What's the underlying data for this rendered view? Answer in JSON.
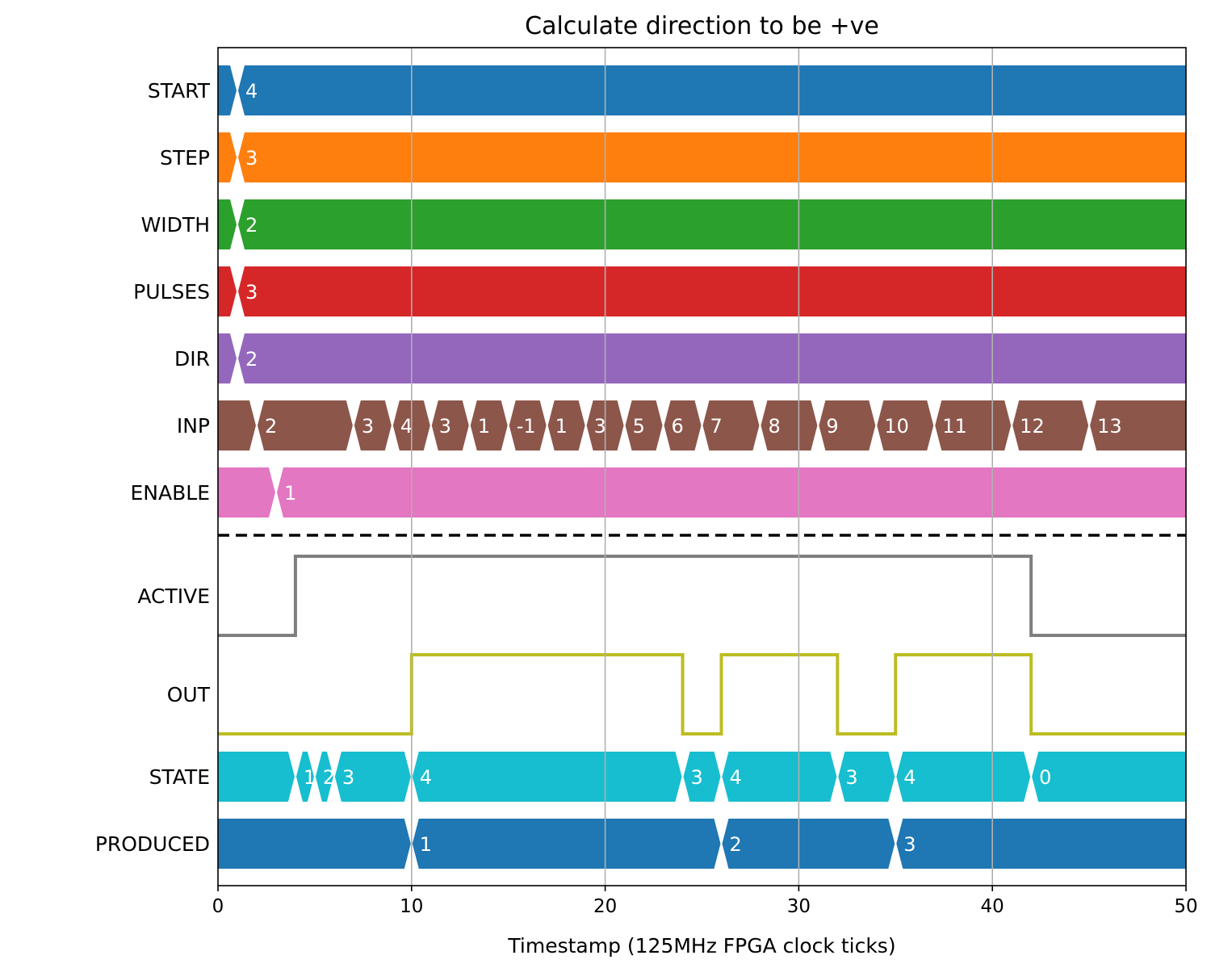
{
  "chart_data": {
    "type": "timing-diagram",
    "title": "Calculate direction to be +ve",
    "xlabel": "Timestamp (125MHz FPGA clock ticks)",
    "xlim": [
      0,
      50
    ],
    "xticks": [
      0,
      10,
      20,
      30,
      40,
      50
    ],
    "grid": "vertical",
    "separator": "dashed line between inputs and outputs",
    "inputs": [
      {
        "name": "START",
        "color": "#1f77b4",
        "transitions": [
          {
            "t": 1,
            "value": "4"
          }
        ]
      },
      {
        "name": "STEP",
        "color": "#ff7f0e",
        "transitions": [
          {
            "t": 1,
            "value": "3"
          }
        ]
      },
      {
        "name": "WIDTH",
        "color": "#2ca02c",
        "transitions": [
          {
            "t": 1,
            "value": "2"
          }
        ]
      },
      {
        "name": "PULSES",
        "color": "#d62728",
        "transitions": [
          {
            "t": 1,
            "value": "3"
          }
        ]
      },
      {
        "name": "DIR",
        "color": "#9467bd",
        "transitions": [
          {
            "t": 1,
            "value": "2"
          }
        ]
      },
      {
        "name": "INP",
        "color": "#8c564b",
        "transitions": [
          {
            "t": 2,
            "value": "2"
          },
          {
            "t": 7,
            "value": "3"
          },
          {
            "t": 9,
            "value": "4"
          },
          {
            "t": 11,
            "value": "3"
          },
          {
            "t": 13,
            "value": "1"
          },
          {
            "t": 15,
            "value": "-1"
          },
          {
            "t": 17,
            "value": "1"
          },
          {
            "t": 19,
            "value": "3"
          },
          {
            "t": 21,
            "value": "5"
          },
          {
            "t": 23,
            "value": "6"
          },
          {
            "t": 25,
            "value": "7"
          },
          {
            "t": 28,
            "value": "8"
          },
          {
            "t": 31,
            "value": "9"
          },
          {
            "t": 34,
            "value": "10"
          },
          {
            "t": 37,
            "value": "11"
          },
          {
            "t": 41,
            "value": "12"
          },
          {
            "t": 45,
            "value": "13"
          }
        ]
      },
      {
        "name": "ENABLE",
        "color": "#e377c2",
        "transitions": [
          {
            "t": 3,
            "value": "1"
          }
        ]
      }
    ],
    "outputs": [
      {
        "name": "ACTIVE",
        "kind": "bit",
        "color": "#7f7f7f",
        "initial": 0,
        "transitions": [
          {
            "t": 4,
            "value": 1
          },
          {
            "t": 42,
            "value": 0
          }
        ]
      },
      {
        "name": "OUT",
        "kind": "bit",
        "color": "#bcbd22",
        "initial": 0,
        "transitions": [
          {
            "t": 10,
            "value": 1
          },
          {
            "t": 24,
            "value": 0
          },
          {
            "t": 26,
            "value": 1
          },
          {
            "t": 32,
            "value": 0
          },
          {
            "t": 35,
            "value": 1
          },
          {
            "t": 42,
            "value": 0
          }
        ]
      },
      {
        "name": "STATE",
        "kind": "bus",
        "color": "#17becf",
        "transitions": [
          {
            "t": 4,
            "value": "1"
          },
          {
            "t": 5,
            "value": "2"
          },
          {
            "t": 6,
            "value": "3"
          },
          {
            "t": 10,
            "value": "4"
          },
          {
            "t": 24,
            "value": "3"
          },
          {
            "t": 26,
            "value": "4"
          },
          {
            "t": 32,
            "value": "3"
          },
          {
            "t": 35,
            "value": "4"
          },
          {
            "t": 42,
            "value": "0"
          }
        ]
      },
      {
        "name": "PRODUCED",
        "kind": "bus",
        "color": "#1f77b4",
        "transitions": [
          {
            "t": 10,
            "value": "1"
          },
          {
            "t": 26,
            "value": "2"
          },
          {
            "t": 35,
            "value": "3"
          }
        ]
      }
    ]
  }
}
